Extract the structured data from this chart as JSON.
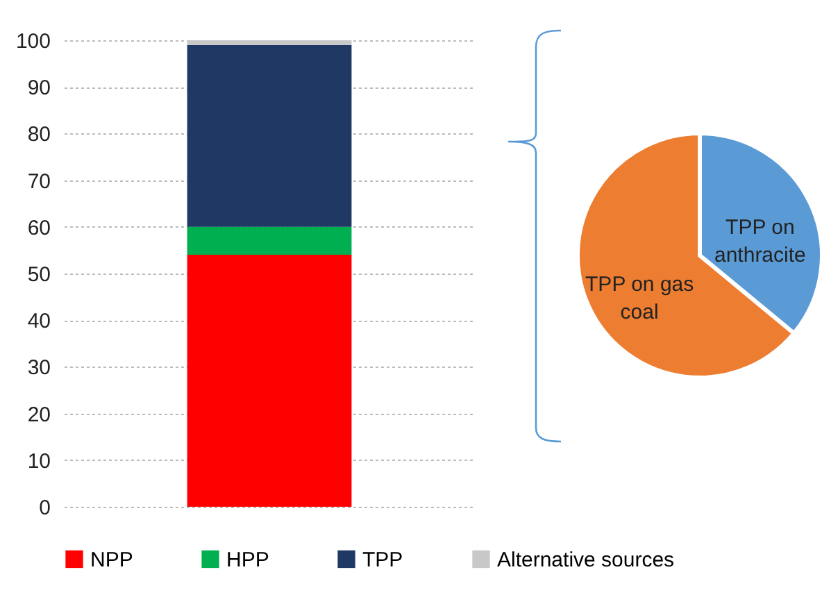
{
  "chart_data": [
    {
      "type": "bar",
      "categories": [
        null
      ],
      "stacked": true,
      "series": [
        {
          "name": "NPP",
          "color": "#ff0000",
          "values": [
            54
          ]
        },
        {
          "name": "HPP",
          "color": "#00b050",
          "values": [
            6
          ]
        },
        {
          "name": "TPP",
          "color": "#203864",
          "values": [
            39
          ]
        },
        {
          "name": "Alternative sources",
          "color": "#c8c8c8",
          "values": [
            1
          ]
        }
      ],
      "ylim": [
        0,
        100
      ],
      "yticks": [
        0,
        10,
        20,
        30,
        40,
        50,
        60,
        70,
        80,
        90,
        100
      ],
      "grid": "y",
      "legend": "bottom",
      "tick_labels": "y"
    },
    {
      "type": "pie",
      "categories": [
        "TPP on anthracite",
        "TPP on gas coal"
      ],
      "values": [
        36,
        64
      ],
      "colors": [
        "#5b9bd5",
        "#ed7d31"
      ],
      "legend": false
    }
  ]
}
